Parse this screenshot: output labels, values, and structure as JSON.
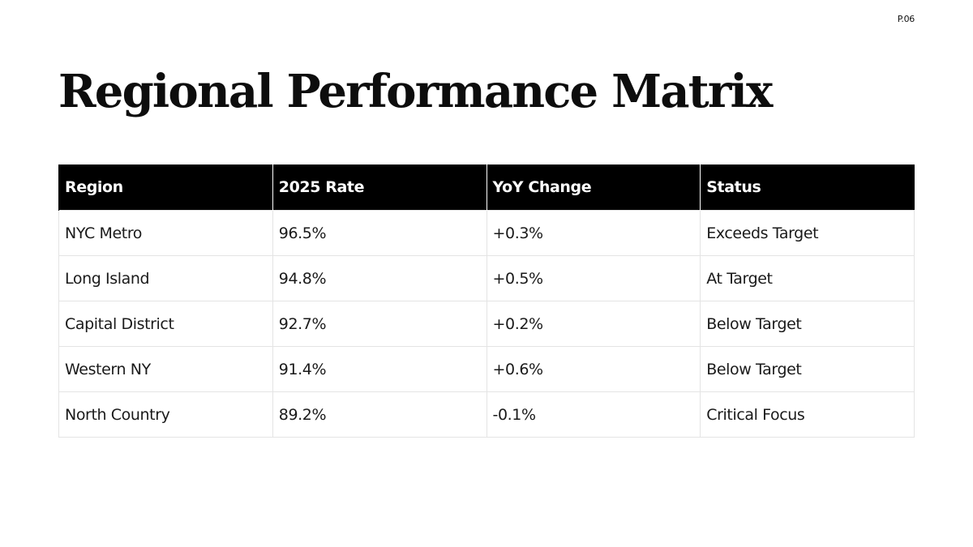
{
  "page": {
    "number": "P.06",
    "title": "Regional Performance Matrix"
  },
  "table": {
    "headers": [
      "Region",
      "2025 Rate",
      "YoY Change",
      "Status"
    ],
    "rows": [
      [
        "NYC Metro",
        "96.5%",
        "+0.3%",
        "Exceeds Target"
      ],
      [
        "Long Island",
        "94.8%",
        "+0.5%",
        "At Target"
      ],
      [
        "Capital District",
        "92.7%",
        "+0.2%",
        "Below Target"
      ],
      [
        "Western NY",
        "91.4%",
        "+0.6%",
        "Below Target"
      ],
      [
        "North Country",
        "89.2%",
        "-0.1%",
        "Critical Focus"
      ]
    ]
  }
}
